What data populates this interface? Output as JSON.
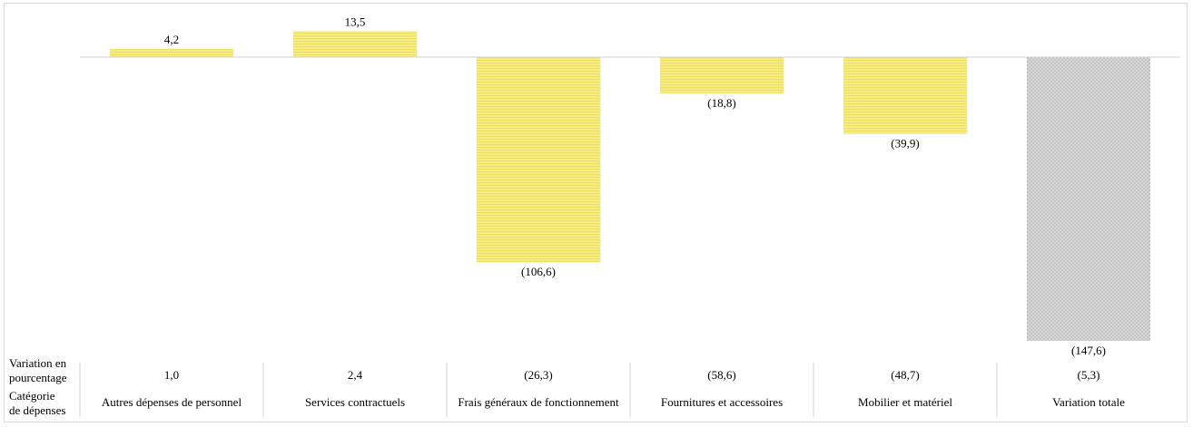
{
  "chart_data": {
    "type": "bar",
    "title": "",
    "xlabel": "",
    "ylabel": "",
    "categories": [
      "Autres dépenses de personnel",
      "Services contractuels",
      "Frais généraux de fonctionnement",
      "Fournitures et accessoires",
      "Mobilier et matériel",
      "Variation totale"
    ],
    "values": [
      4.2,
      13.5,
      -106.6,
      -18.8,
      -39.9,
      -147.6
    ],
    "value_labels": [
      "4,2",
      "13,5",
      "(106,6)",
      "(18,8)",
      "(39,9)",
      "(147,6)"
    ],
    "percent_changes": [
      "1,0",
      "2,4",
      "(26,3)",
      "(58,6)",
      "(48,7)",
      "(5,3)"
    ],
    "ylim": [
      -147.6,
      13.5
    ],
    "grid": false,
    "row_headers": {
      "percent_line1": "Variation en",
      "percent_line2": "pourcentage",
      "category_line1": "Catégorie",
      "category_line2": "de dépenses"
    },
    "colors": {
      "bar_fill": "#f7ec8a",
      "bar_stripe": "#efe05c",
      "total_fill": "#e0e0e0",
      "total_pattern": "#b5b5b5",
      "axis": "#d0d0d0"
    }
  }
}
